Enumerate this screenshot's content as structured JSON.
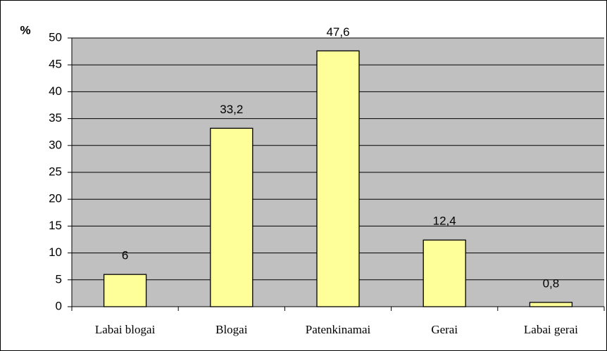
{
  "chart_data": {
    "type": "bar",
    "y_label": "%",
    "categories": [
      "Labai blogai",
      "Blogai",
      "Patenkinamai",
      "Gerai",
      "Labai gerai"
    ],
    "values": [
      6,
      33.2,
      47.6,
      12.4,
      0.8
    ],
    "value_labels": [
      "6",
      "33,2",
      "47,6",
      "12,4",
      "0,8"
    ],
    "color": "#ffff99",
    "ylim": [
      0,
      50
    ],
    "yticks": [
      0,
      5,
      10,
      15,
      20,
      25,
      30,
      35,
      40,
      45,
      50
    ],
    "grid": true
  }
}
